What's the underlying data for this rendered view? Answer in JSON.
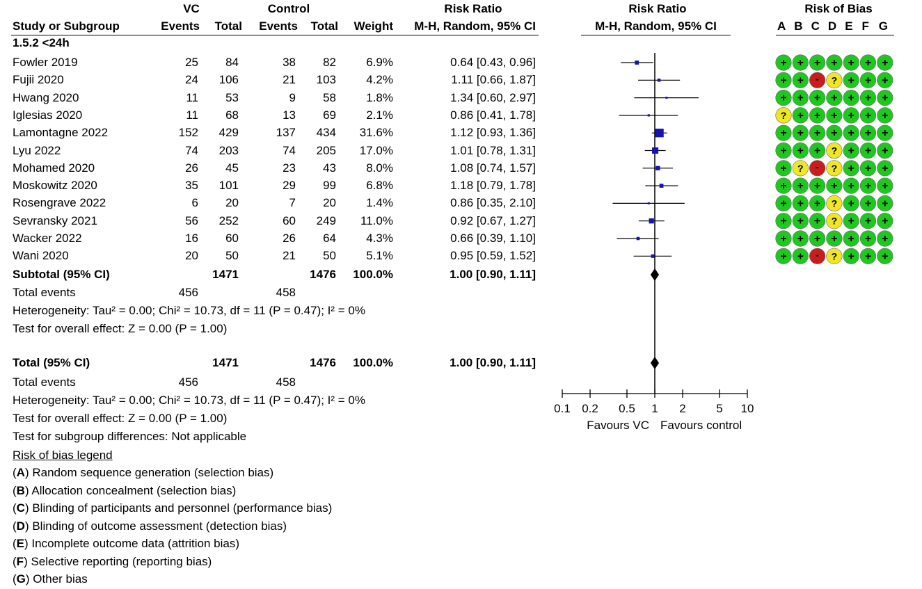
{
  "header": {
    "vc": "VC",
    "control": "Control",
    "risk_ratio": "Risk Ratio",
    "risk_ratio_plot": "Risk Ratio",
    "risk_of_bias": "Risk of Bias",
    "study": "Study or Subgroup",
    "events": "Events",
    "total": "Total",
    "events2": "Events",
    "total2": "Total",
    "weight": "Weight",
    "method": "M-H, Random, 95% CI",
    "method_plot": "M-H, Random, 95% CI",
    "bias_letters": [
      "A",
      "B",
      "C",
      "D",
      "E",
      "F",
      "G"
    ]
  },
  "subgroup_label": "1.5.2 <24h",
  "studies": [
    {
      "name": "Fowler 2019",
      "vc_events": "25",
      "vc_total": "84",
      "c_events": "38",
      "c_total": "82",
      "weight": "6.9%",
      "ci": "0.64 [0.43, 0.96]",
      "rr": 0.64,
      "lo": 0.43,
      "hi": 0.96,
      "w": 6.9,
      "bias": [
        "+",
        "+",
        "+",
        "+",
        "+",
        "+",
        "+"
      ]
    },
    {
      "name": "Fujii 2020",
      "vc_events": "24",
      "vc_total": "106",
      "c_events": "21",
      "c_total": "103",
      "weight": "4.2%",
      "ci": "1.11 [0.66, 1.87]",
      "rr": 1.11,
      "lo": 0.66,
      "hi": 1.87,
      "w": 4.2,
      "bias": [
        "+",
        "+",
        "-",
        "?",
        "+",
        "+",
        "+"
      ]
    },
    {
      "name": "Hwang 2020",
      "vc_events": "11",
      "vc_total": "53",
      "c_events": "9",
      "c_total": "58",
      "weight": "1.8%",
      "ci": "1.34 [0.60, 2.97]",
      "rr": 1.34,
      "lo": 0.6,
      "hi": 2.97,
      "w": 1.8,
      "bias": [
        "+",
        "+",
        "+",
        "+",
        "+",
        "+",
        "+"
      ]
    },
    {
      "name": "Iglesias 2020",
      "vc_events": "11",
      "vc_total": "68",
      "c_events": "13",
      "c_total": "69",
      "weight": "2.1%",
      "ci": "0.86 [0.41, 1.78]",
      "rr": 0.86,
      "lo": 0.41,
      "hi": 1.78,
      "w": 2.1,
      "bias": [
        "?",
        "+",
        "+",
        "+",
        "+",
        "+",
        "+"
      ]
    },
    {
      "name": "Lamontagne 2022",
      "vc_events": "152",
      "vc_total": "429",
      "c_events": "137",
      "c_total": "434",
      "weight": "31.6%",
      "ci": "1.12 [0.93, 1.36]",
      "rr": 1.12,
      "lo": 0.93,
      "hi": 1.36,
      "w": 31.6,
      "bias": [
        "+",
        "+",
        "+",
        "+",
        "+",
        "+",
        "+"
      ]
    },
    {
      "name": "Lyu 2022",
      "vc_events": "74",
      "vc_total": "203",
      "c_events": "74",
      "c_total": "205",
      "weight": "17.0%",
      "ci": "1.01 [0.78, 1.31]",
      "rr": 1.01,
      "lo": 0.78,
      "hi": 1.31,
      "w": 17.0,
      "bias": [
        "+",
        "+",
        "+",
        "?",
        "+",
        "+",
        "+"
      ]
    },
    {
      "name": "Mohamed 2020",
      "vc_events": "26",
      "vc_total": "45",
      "c_events": "23",
      "c_total": "43",
      "weight": "8.0%",
      "ci": "1.08 [0.74, 1.57]",
      "rr": 1.08,
      "lo": 0.74,
      "hi": 1.57,
      "w": 8.0,
      "bias": [
        "+",
        "?",
        "-",
        "?",
        "+",
        "+",
        "+"
      ]
    },
    {
      "name": "Moskowitz 2020",
      "vc_events": "35",
      "vc_total": "101",
      "c_events": "29",
      "c_total": "99",
      "weight": "6.8%",
      "ci": "1.18 [0.79, 1.78]",
      "rr": 1.18,
      "lo": 0.79,
      "hi": 1.78,
      "w": 6.8,
      "bias": [
        "+",
        "+",
        "+",
        "+",
        "+",
        "+",
        "+"
      ]
    },
    {
      "name": "Rosengrave 2022",
      "vc_events": "6",
      "vc_total": "20",
      "c_events": "7",
      "c_total": "20",
      "weight": "1.4%",
      "ci": "0.86 [0.35, 2.10]",
      "rr": 0.86,
      "lo": 0.35,
      "hi": 2.1,
      "w": 1.4,
      "bias": [
        "+",
        "+",
        "+",
        "?",
        "+",
        "+",
        "+"
      ]
    },
    {
      "name": "Sevransky 2021",
      "vc_events": "56",
      "vc_total": "252",
      "c_events": "60",
      "c_total": "249",
      "weight": "11.0%",
      "ci": "0.92 [0.67, 1.27]",
      "rr": 0.92,
      "lo": 0.67,
      "hi": 1.27,
      "w": 11.0,
      "bias": [
        "+",
        "+",
        "+",
        "?",
        "+",
        "+",
        "+"
      ]
    },
    {
      "name": "Wacker 2022",
      "vc_events": "16",
      "vc_total": "60",
      "c_events": "26",
      "c_total": "64",
      "weight": "4.3%",
      "ci": "0.66 [0.39, 1.10]",
      "rr": 0.66,
      "lo": 0.39,
      "hi": 1.1,
      "w": 4.3,
      "bias": [
        "+",
        "+",
        "+",
        "+",
        "+",
        "+",
        "+"
      ]
    },
    {
      "name": "Wani 2020",
      "vc_events": "20",
      "vc_total": "50",
      "c_events": "21",
      "c_total": "50",
      "weight": "5.1%",
      "ci": "0.95 [0.59, 1.52]",
      "rr": 0.95,
      "lo": 0.59,
      "hi": 1.52,
      "w": 5.1,
      "bias": [
        "+",
        "+",
        "-",
        "?",
        "+",
        "+",
        "+"
      ]
    }
  ],
  "subtotal": {
    "label": "Subtotal (95% CI)",
    "vc_total": "1471",
    "c_total": "1476",
    "weight": "100.0%",
    "ci": "1.00 [0.90, 1.11]",
    "rr": 1.0,
    "lo": 0.9,
    "hi": 1.11
  },
  "subtotal_events": {
    "label": "Total events",
    "vc": "456",
    "c": "458"
  },
  "subtotal_heterogeneity": "Heterogeneity: Tau² = 0.00; Chi² = 10.73, df = 11 (P = 0.47); I² = 0%",
  "subtotal_test": "Test for overall effect: Z = 0.00 (P = 1.00)",
  "total": {
    "label": "Total (95% CI)",
    "vc_total": "1471",
    "c_total": "1476",
    "weight": "100.0%",
    "ci": "1.00 [0.90, 1.11]",
    "rr": 1.0,
    "lo": 0.9,
    "hi": 1.11
  },
  "total_events": {
    "label": "Total events",
    "vc": "456",
    "c": "458"
  },
  "total_heterogeneity": "Heterogeneity: Tau² = 0.00; Chi² = 10.73, df = 11 (P = 0.47); I² = 0%",
  "total_test": "Test for overall effect: Z = 0.00 (P = 1.00)",
  "subgroup_differences": "Test for subgroup differences: Not applicable",
  "legend": {
    "title": "Risk of bias legend",
    "items": [
      {
        "letter": "A",
        "text": " Random sequence generation (selection bias)"
      },
      {
        "letter": "B",
        "text": " Allocation concealment (selection bias)"
      },
      {
        "letter": "C",
        "text": " Blinding of participants and personnel (performance bias)"
      },
      {
        "letter": "D",
        "text": " Blinding of outcome assessment (detection bias)"
      },
      {
        "letter": "E",
        "text": " Incomplete outcome data (attrition bias)"
      },
      {
        "letter": "F",
        "text": " Selective reporting (reporting bias)"
      },
      {
        "letter": "G",
        "text": " Other bias"
      }
    ]
  },
  "colors": {
    "low": "#1ec81e",
    "unclear": "#f0e628",
    "high": "#c81e1e",
    "marker": "#1414b4",
    "ink": "#000000"
  },
  "chart_data": {
    "type": "forest",
    "title": "Risk Ratio",
    "subtitle": "M-H, Random, 95% CI",
    "xscale": "log",
    "xlim": [
      0.1,
      10
    ],
    "ticks": [
      0.1,
      0.2,
      0.5,
      1,
      2,
      5,
      10
    ],
    "tick_labels": [
      "0.1",
      "0.2",
      "0.5",
      "1",
      "2",
      "5",
      "10"
    ],
    "reference": 1,
    "xlabel_left": "Favours VC",
    "xlabel_right": "Favours control",
    "series": "studies"
  }
}
